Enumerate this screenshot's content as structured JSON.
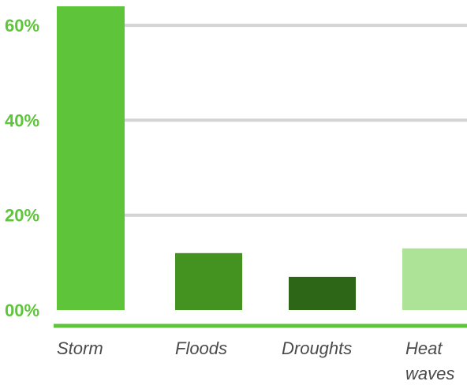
{
  "chart_data": {
    "type": "bar",
    "categories": [
      "Storm",
      "Floods",
      "Droughts",
      "Heat waves"
    ],
    "category_lines": [
      [
        "Storm"
      ],
      [
        "Floods"
      ],
      [
        "Droughts"
      ],
      [
        "Heat",
        "waves"
      ]
    ],
    "values": [
      64,
      12,
      7,
      13
    ],
    "bar_colors": [
      "#5ec43a",
      "#44921f",
      "#2d6617",
      "#ade396"
    ],
    "ylim": [
      0,
      64
    ],
    "yticks": [
      0,
      20,
      40,
      60
    ],
    "ytick_labels": [
      "00%",
      "20%",
      "40%",
      "60%"
    ],
    "ytick_color": "#5ec43a",
    "grid": true,
    "grid_color": "#d4d4d4",
    "axis_color": "#5ec43a",
    "title": "",
    "xlabel": "",
    "ylabel": ""
  }
}
